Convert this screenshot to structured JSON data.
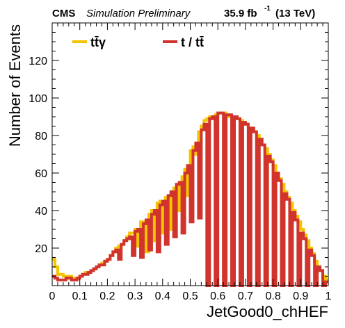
{
  "header": {
    "experiment": "CMS",
    "status": "Simulation Preliminary",
    "lumi_value": "35.9 fb",
    "lumi_exp": "-1",
    "energy": "(13 TeV)"
  },
  "colors": {
    "ttgamma": "#f5c400",
    "t_ttbar": "#d0342c",
    "axes": "#000000"
  },
  "chart_data": {
    "type": "line",
    "title": "",
    "xlabel": "JetGood0_chHEF",
    "ylabel": "Number of Events",
    "xlim": [
      0,
      1
    ],
    "ylim": [
      0,
      140
    ],
    "x_tick_labels": [
      "0",
      "0.1",
      "0.2",
      "0.3",
      "0.4",
      "0.5",
      "0.6",
      "0.7",
      "0.8",
      "0.9",
      "1"
    ],
    "y_tick_labels": [
      "20",
      "40",
      "60",
      "80",
      "100",
      "120"
    ],
    "grid": false,
    "legend_position": "top-left",
    "legend": [
      {
        "label": "tt̄γ",
        "color": "#f5c400"
      },
      {
        "label": "t / tt̄",
        "color": "#d0342c"
      }
    ],
    "bins": 100,
    "series": [
      {
        "name": "tt̄γ",
        "color": "#f5c400",
        "values": [
          14,
          10,
          6,
          6,
          5,
          4,
          5,
          4,
          4,
          4,
          5,
          6,
          7,
          7,
          8,
          9,
          10,
          11,
          12,
          13,
          14,
          16,
          18,
          20,
          21,
          22,
          24,
          26,
          28,
          28,
          30,
          32,
          34,
          34,
          36,
          38,
          40,
          42,
          44,
          45,
          46,
          47,
          48,
          50,
          52,
          54,
          55,
          58,
          62,
          68,
          72,
          74,
          78,
          82,
          85,
          88,
          89,
          90,
          90,
          91,
          92,
          92,
          92,
          91,
          90,
          90,
          90,
          89,
          88,
          87,
          86,
          84,
          83,
          82,
          80,
          78,
          75,
          73,
          70,
          67,
          64,
          60,
          57,
          54,
          50,
          47,
          44,
          40,
          37,
          34,
          30,
          27,
          24,
          20,
          17,
          13,
          10,
          8,
          5,
          3
        ]
      },
      {
        "name": "t / tt̄",
        "color": "#d0342c",
        "values": [
          5,
          4,
          3,
          3,
          3,
          4,
          4,
          3,
          3,
          4,
          5,
          6,
          6,
          7,
          8,
          9,
          10,
          11,
          11,
          13,
          14,
          16,
          18,
          19,
          20,
          22,
          24,
          25,
          26,
          27,
          29,
          30,
          31,
          33,
          35,
          36,
          38,
          40,
          42,
          43,
          45,
          47,
          48,
          50,
          52,
          54,
          55,
          57,
          60,
          64,
          68,
          72,
          76,
          80,
          83,
          86,
          88,
          89,
          90,
          91,
          92,
          92,
          92,
          91,
          91,
          90,
          90,
          89,
          88,
          87,
          86,
          85,
          84,
          82,
          80,
          78,
          75,
          72,
          69,
          66,
          63,
          60,
          56,
          53,
          49,
          46,
          42,
          39,
          35,
          32,
          28,
          25,
          22,
          19,
          16,
          13,
          10,
          8,
          5,
          2
        ]
      }
    ],
    "fluctuation_bins": [
      {
        "series": "t / tt̄",
        "low_bins": [
          24,
          29,
          32,
          35,
          38,
          41,
          44,
          47,
          50,
          53,
          56,
          59,
          62,
          65,
          68,
          71,
          74,
          77,
          80,
          83,
          86,
          89,
          92,
          95,
          98
        ],
        "low_values": [
          14,
          16,
          15,
          19,
          18,
          22,
          26,
          28,
          34,
          36,
          0,
          0,
          0,
          0,
          0,
          0,
          0,
          0,
          0,
          0,
          0,
          0,
          0,
          0,
          0
        ]
      },
      {
        "series": "tt̄γ",
        "low_bins": [
          31,
          34,
          37,
          40,
          43,
          46,
          49,
          52
        ],
        "low_values": [
          21,
          18,
          24,
          28,
          30,
          40,
          48,
          70
        ]
      }
    ]
  }
}
